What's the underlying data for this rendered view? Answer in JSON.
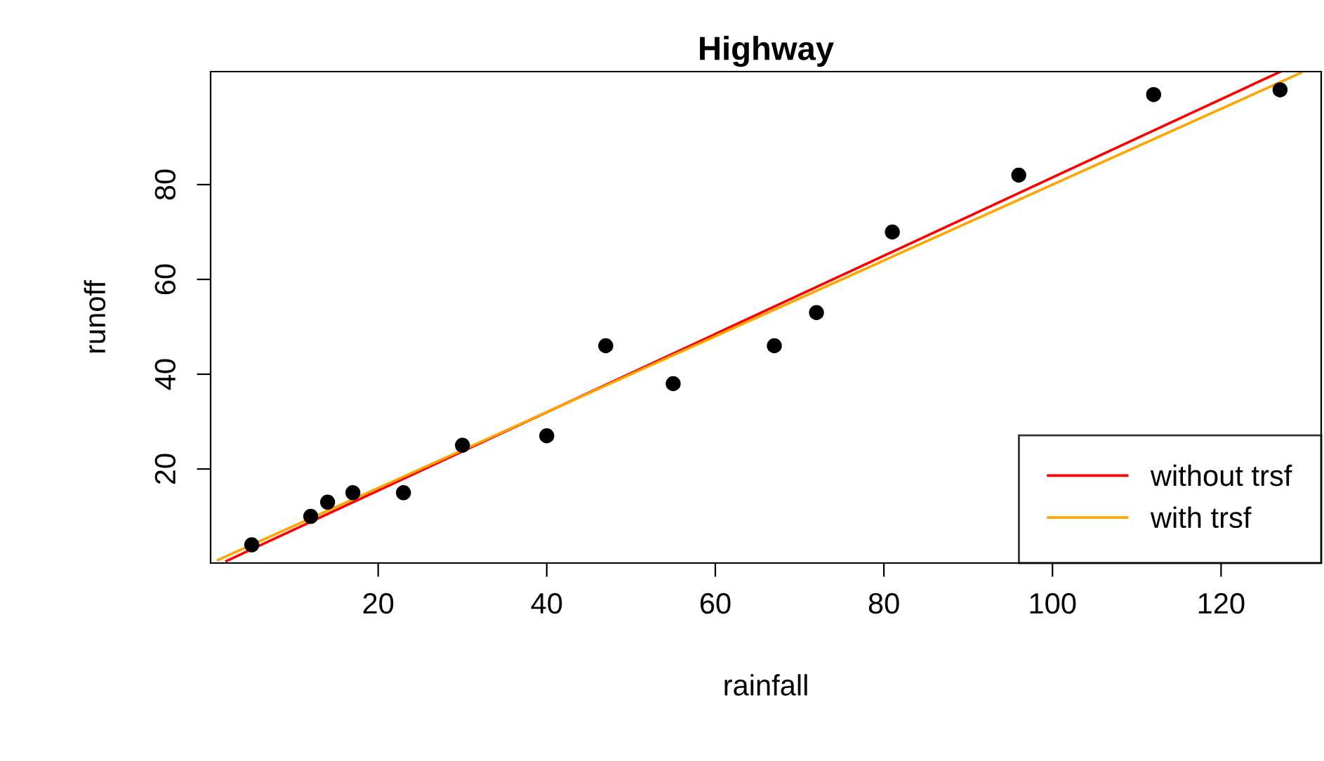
{
  "chart_data": {
    "type": "scatter",
    "title": "Highway",
    "xlabel": "rainfall",
    "ylabel": "runoff",
    "x": [
      5,
      12,
      14,
      17,
      23,
      30,
      40,
      47,
      55,
      67,
      72,
      81,
      96,
      112,
      127
    ],
    "series": [
      {
        "color": "#000000",
        "marker": "circle",
        "values": [
          4,
          10,
          13,
          15,
          15,
          25,
          27,
          46,
          38,
          46,
          53,
          70,
          82,
          99,
          100
        ]
      },
      {
        "type": "line",
        "name": "without trsf",
        "color": "#ff0000",
        "x": [
          2,
          127
        ],
        "values": [
          0.6,
          103.8
        ],
        "marker": "none"
      },
      {
        "type": "line",
        "name": "with trsf",
        "color": "#ffa500",
        "x": [
          1,
          129.5
        ],
        "values": [
          0.8,
          103.6
        ],
        "marker": "none"
      }
    ],
    "xlim": [
      0.12,
      131.88
    ],
    "ylim": [
      0.16,
      103.84
    ],
    "xticks": [
      20,
      40,
      60,
      80,
      100,
      120
    ],
    "yticks": [
      20,
      40,
      60,
      80
    ],
    "line_style": "solid",
    "grid": false,
    "legend": "bottom right"
  }
}
